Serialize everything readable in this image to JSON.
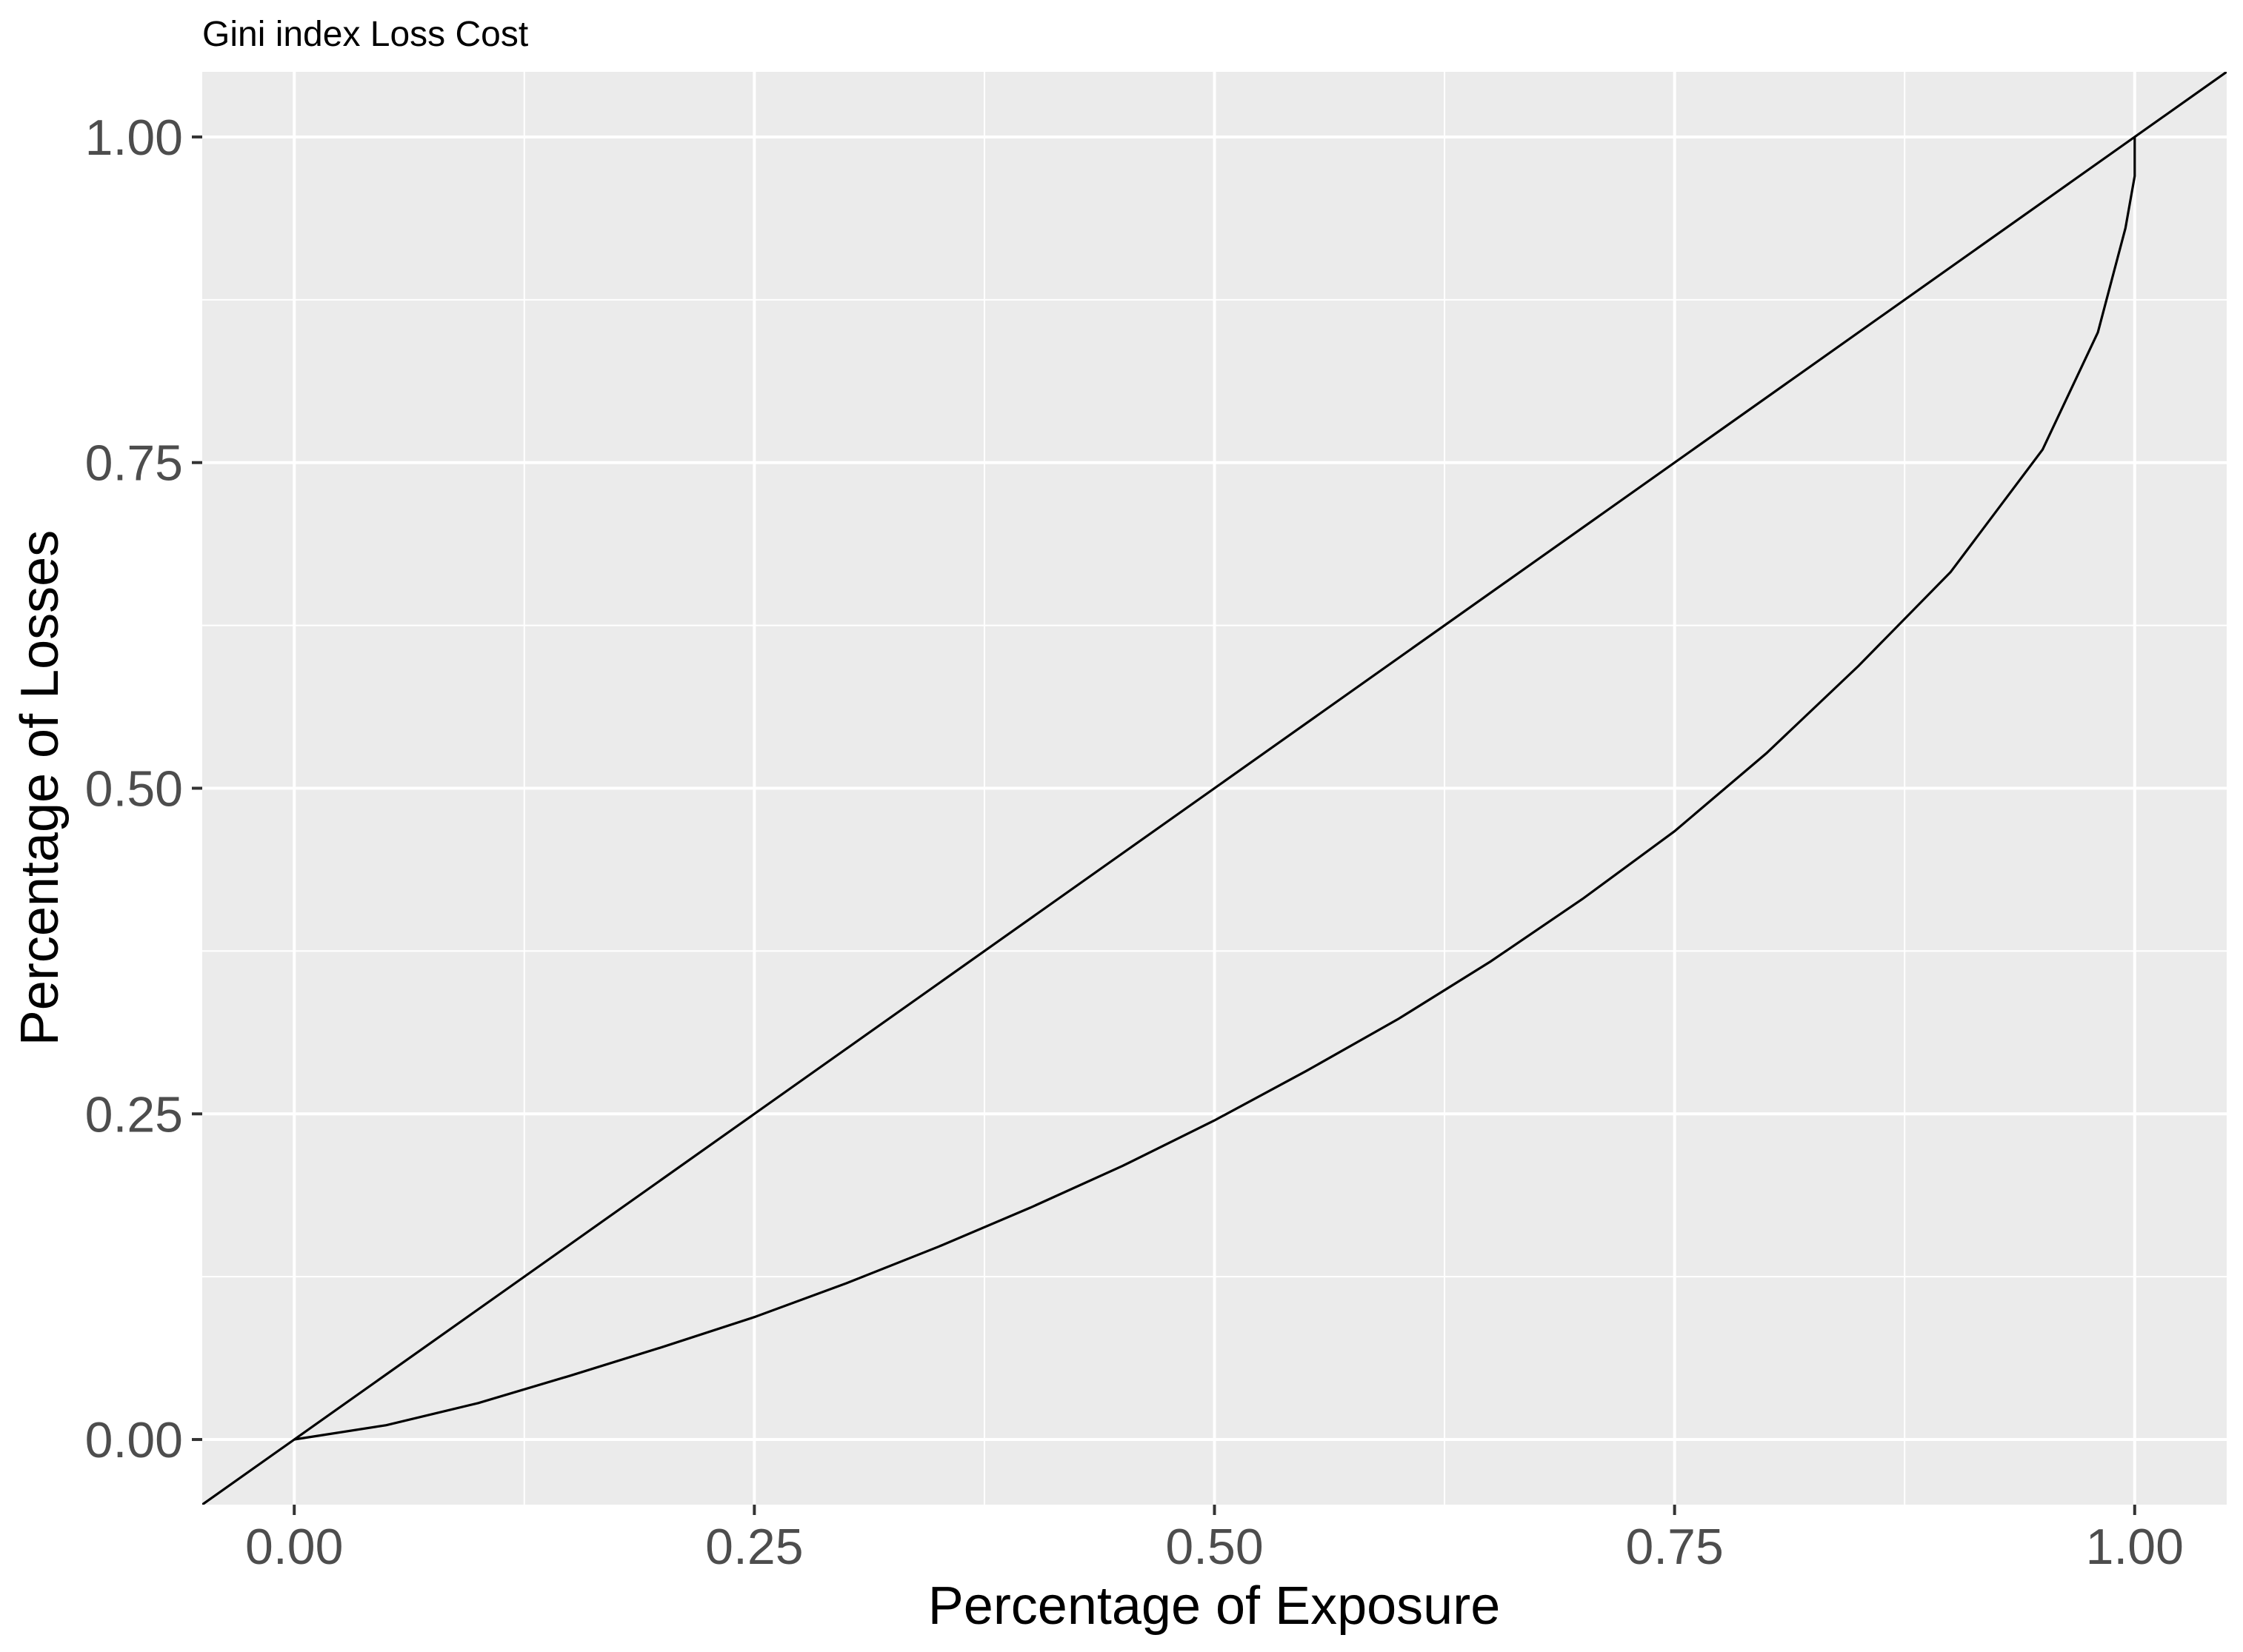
{
  "chart_data": {
    "type": "line",
    "title": "Gini index Loss Cost",
    "xlabel": "Percentage of Exposure",
    "ylabel": "Percentage of Losses",
    "xlim": [
      -0.05,
      1.05
    ],
    "ylim": [
      -0.05,
      1.05
    ],
    "xticks": [
      "0.00",
      "0.25",
      "0.50",
      "0.75",
      "1.00"
    ],
    "yticks": [
      "0.00",
      "0.25",
      "0.50",
      "0.75",
      "1.00"
    ],
    "grid": true,
    "background": "#ebebeb",
    "series": [
      {
        "x": [
          -0.05,
          1.05
        ],
        "y": [
          -0.05,
          1.05
        ]
      },
      {
        "x": [
          0.0,
          0.05,
          0.1,
          0.15,
          0.2,
          0.25,
          0.3,
          0.35,
          0.4,
          0.45,
          0.5,
          0.55,
          0.6,
          0.65,
          0.7,
          0.75,
          0.8,
          0.85,
          0.9,
          0.95,
          0.98,
          0.995,
          1.0,
          1.0
        ],
        "y": [
          0.0,
          0.011,
          0.028,
          0.049,
          0.071,
          0.094,
          0.12,
          0.148,
          0.178,
          0.21,
          0.245,
          0.283,
          0.323,
          0.367,
          0.415,
          0.467,
          0.527,
          0.594,
          0.666,
          0.76,
          0.85,
          0.93,
          0.97,
          1.0
        ]
      }
    ]
  }
}
